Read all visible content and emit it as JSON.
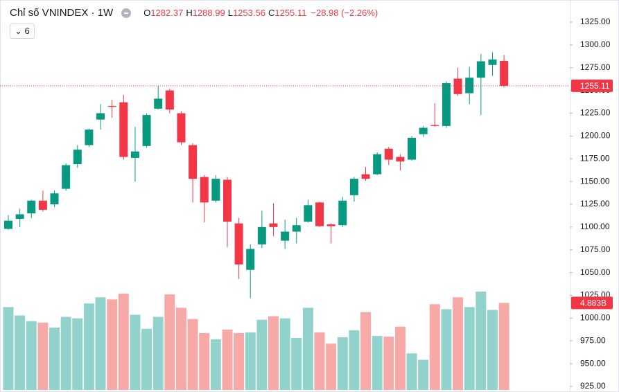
{
  "chart_data": {
    "type": "candlestick",
    "title": "Chỉ số VNINDEX · 1W",
    "indicator_count": "6",
    "ohlc_labels": [
      "O",
      "H",
      "L",
      "C"
    ],
    "change": "−28.98 (−2.26%)",
    "open": [
      1098,
      1109,
      1115,
      1129,
      1125,
      1142,
      1169,
      1190,
      1218,
      1233,
      1237,
      1176,
      1189,
      1230,
      1250,
      1225,
      1190,
      1155,
      1129,
      1152,
      1104,
      1053,
      1081,
      1104,
      1085,
      1095,
      1106,
      1127,
      1103,
      1102,
      1135,
      1158,
      1158,
      1186,
      1177,
      1174,
      1202,
      1212,
      1211,
      1263,
      1247,
      1264,
      1278,
      1282.37
    ],
    "high": [
      1113,
      1120,
      1130,
      1140,
      1140,
      1170,
      1190,
      1208,
      1235,
      1240,
      1245,
      1210,
      1225,
      1255,
      1252,
      1227,
      1192,
      1157,
      1157,
      1155,
      1110,
      1081,
      1118,
      1126,
      1108,
      1110,
      1130,
      1128,
      1104,
      1133,
      1155,
      1166,
      1182,
      1188,
      1180,
      1200,
      1211,
      1236,
      1260,
      1275,
      1276,
      1290,
      1292,
      1288.99
    ],
    "low": [
      1097,
      1100,
      1110,
      1117,
      1122,
      1140,
      1165,
      1188,
      1207,
      1220,
      1174,
      1150,
      1187,
      1229,
      1225,
      1190,
      1127,
      1105,
      1127,
      1078,
      1043,
      1022,
      1077,
      1090,
      1076,
      1082,
      1105,
      1100,
      1082,
      1100,
      1128,
      1151,
      1157,
      1168,
      1162,
      1173,
      1199,
      1210,
      1209,
      1244,
      1235,
      1223,
      1266,
      1253.56
    ],
    "close": [
      1107,
      1114,
      1129,
      1119,
      1137,
      1168,
      1185,
      1207,
      1225,
      1232,
      1177,
      1183,
      1223,
      1241,
      1229,
      1193,
      1153,
      1127,
      1153,
      1106,
      1059,
      1076,
      1100,
      1100,
      1095,
      1102,
      1124,
      1101,
      1101,
      1129,
      1153,
      1153,
      1180,
      1174,
      1172,
      1198,
      1209,
      1211,
      1258,
      1246,
      1264,
      1282,
      1284,
      1255.11
    ],
    "volume": [
      4.65,
      4.18,
      3.86,
      3.78,
      3.5,
      4.1,
      4.02,
      4.85,
      5.2,
      5.08,
      5.4,
      4.22,
      3.43,
      4.1,
      5.36,
      4.61,
      3.98,
      3.19,
      2.84,
      3.39,
      3.19,
      3.23,
      3.94,
      4.14,
      4.02,
      2.92,
      4.61,
      3.23,
      2.6,
      2.96,
      3.35,
      4.37,
      3.03,
      2.99,
      3.55,
      2.05,
      1.69,
      4.81,
      4.53,
      5.2,
      4.65,
      5.52,
      4.49,
      4.883
    ],
    "volume_label": "4.883B",
    "ylim": [
      921.2,
      1345.5
    ],
    "yticks": [
      {
        "value": 925,
        "label": "925.00"
      },
      {
        "value": 950,
        "label": "950.00"
      },
      {
        "value": 975,
        "label": "975.00"
      },
      {
        "value": 1000,
        "label": "1000.00"
      },
      {
        "value": 1025,
        "label": "1025.00"
      },
      {
        "value": 1050,
        "label": "1050.00"
      },
      {
        "value": 1075,
        "label": "1075.00"
      },
      {
        "value": 1100,
        "label": "1100.00"
      },
      {
        "value": 1125,
        "label": "1125.00"
      },
      {
        "value": 1150,
        "label": "1150.00"
      },
      {
        "value": 1175,
        "label": "1175.00"
      },
      {
        "value": 1200,
        "label": "1200.00"
      },
      {
        "value": 1225,
        "label": "1225.00"
      },
      {
        "value": 1250,
        "label": "1250.00"
      },
      {
        "value": 1275,
        "label": "1275.00"
      },
      {
        "value": 1300,
        "label": "1300.00"
      },
      {
        "value": 1325,
        "label": "1325.00"
      }
    ],
    "colors": {
      "up": "#089981",
      "down": "#f23645",
      "volume_up": "#92d2cc",
      "volume_down": "#f7a9a7"
    }
  }
}
